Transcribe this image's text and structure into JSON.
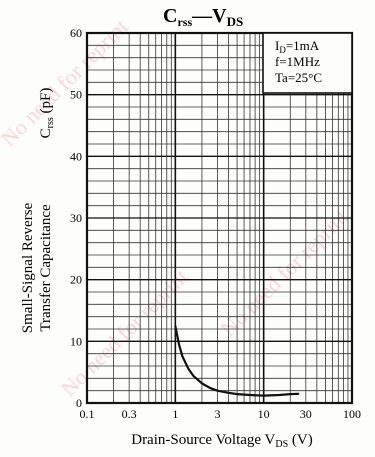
{
  "chart_data": {
    "type": "line",
    "title": {
      "main": "C",
      "main_sub": "rss",
      "dash": "—",
      "main2": "V",
      "main2_sub": "DS"
    },
    "xaxis": {
      "label": "Drain-Source Voltage",
      "symbol": "V",
      "symbol_sub": "DS",
      "unit": "(V)",
      "scale": "log",
      "range": [
        0.1,
        100
      ],
      "ticks": [
        {
          "value": 0.1,
          "label": "0.1"
        },
        {
          "value": 0.3,
          "label": "0.3"
        },
        {
          "value": 1,
          "label": "1"
        },
        {
          "value": 3,
          "label": "3"
        },
        {
          "value": 10,
          "label": "10"
        },
        {
          "value": 30,
          "label": "30"
        },
        {
          "value": 100,
          "label": "100"
        }
      ]
    },
    "yaxis": {
      "label_line1": "Small-Signal Reverse",
      "label_line2": "Transfer Capacitance",
      "symbol": "C",
      "symbol_sub": "rss",
      "unit": "(pF)",
      "scale": "linear",
      "range": [
        0,
        60
      ],
      "ticks": [
        {
          "value": 0,
          "label": "0"
        },
        {
          "value": 10,
          "label": "10"
        },
        {
          "value": 20,
          "label": "20"
        },
        {
          "value": 30,
          "label": "30"
        },
        {
          "value": 40,
          "label": "40"
        },
        {
          "value": 50,
          "label": "50"
        },
        {
          "value": 60,
          "label": "60"
        }
      ]
    },
    "conditions": [
      {
        "main": "I",
        "sub": "D",
        "rest": "=1mA"
      },
      {
        "main": "f",
        "sub": "",
        "rest": "=1MHz"
      },
      {
        "main": "Ta",
        "sub": "",
        "rest": "=25°C"
      }
    ],
    "grid": true,
    "series": [
      {
        "x": [
          1.0,
          1.1,
          1.2,
          1.4,
          1.6,
          2.0,
          2.5,
          3.0,
          4.0,
          5.0,
          7.0,
          10,
          15,
          20,
          25
        ],
        "y": [
          12.5,
          9.5,
          7.6,
          5.6,
          4.4,
          3.2,
          2.4,
          2.0,
          1.65,
          1.45,
          1.3,
          1.2,
          1.3,
          1.45,
          1.5
        ]
      }
    ]
  },
  "watermark": "No need for reprint",
  "colors": {
    "ink": "#111111",
    "grid": "#222222",
    "background": "#fdfdfb",
    "watermark": "#f2b8b8"
  }
}
